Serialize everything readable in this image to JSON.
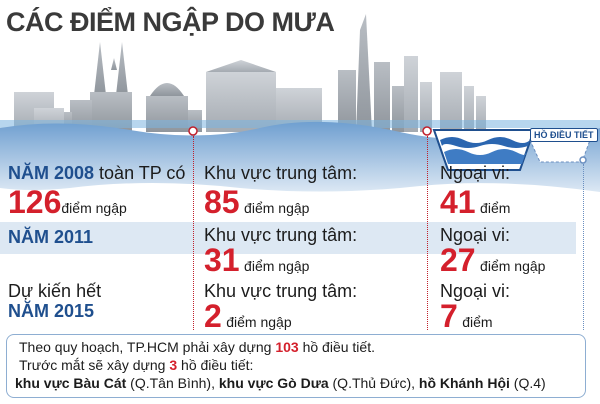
{
  "title": "CÁC ĐIỂM NGẬP DO MƯA",
  "lake_tag": "HỒ ĐIỀU TIẾT",
  "colors": {
    "title": "#3a3a3a",
    "year": "#1f4f8e",
    "number": "#d4202c",
    "band": "#dde8f3",
    "water": "#1f4f8e"
  },
  "rows": [
    {
      "year_prefix": "NĂM 2008",
      "year_suffix": " toàn TP có",
      "total_value": "126",
      "total_unit": "điểm ngập",
      "center_label": "Khu vực trung tâm:",
      "center_value": "85",
      "center_unit": "điểm ngập",
      "outer_label": "Ngoại vi:",
      "outer_value": "41",
      "outer_unit": "điểm"
    },
    {
      "year_prefix": "NĂM 2011",
      "center_label": "Khu vực trung tâm:",
      "center_value": "31",
      "center_unit": "điểm ngập",
      "outer_label": "Ngoại vi:",
      "outer_value": "27",
      "outer_unit": "điểm ngập"
    },
    {
      "year_intro": "Dự kiến hết",
      "year_prefix": "NĂM 2015",
      "center_label": "Khu vực trung tâm:",
      "center_value": "2",
      "center_unit": "điểm ngập",
      "outer_label": "Ngoại vi:",
      "outer_value": "7",
      "outer_unit": "điểm"
    }
  ],
  "note": {
    "line1_pre": "Theo quy hoạch, TP.HCM phải xây dựng ",
    "line1_num": "103",
    "line1_post": " hồ điều tiết.",
    "line2_pre": "Trước mắt sẽ xây dựng ",
    "line2_num": "3",
    "line2_post": " hồ điều tiết:",
    "loc1_name": "khu vực Bàu Cát",
    "loc1_detail": " (Q.Tân Bình), ",
    "loc2_name": "khu vực Gò Dưa",
    "loc2_detail": " (Q.Thủ Đức), ",
    "loc3_name": "hồ Khánh Hội",
    "loc3_detail": " (Q.4)"
  }
}
